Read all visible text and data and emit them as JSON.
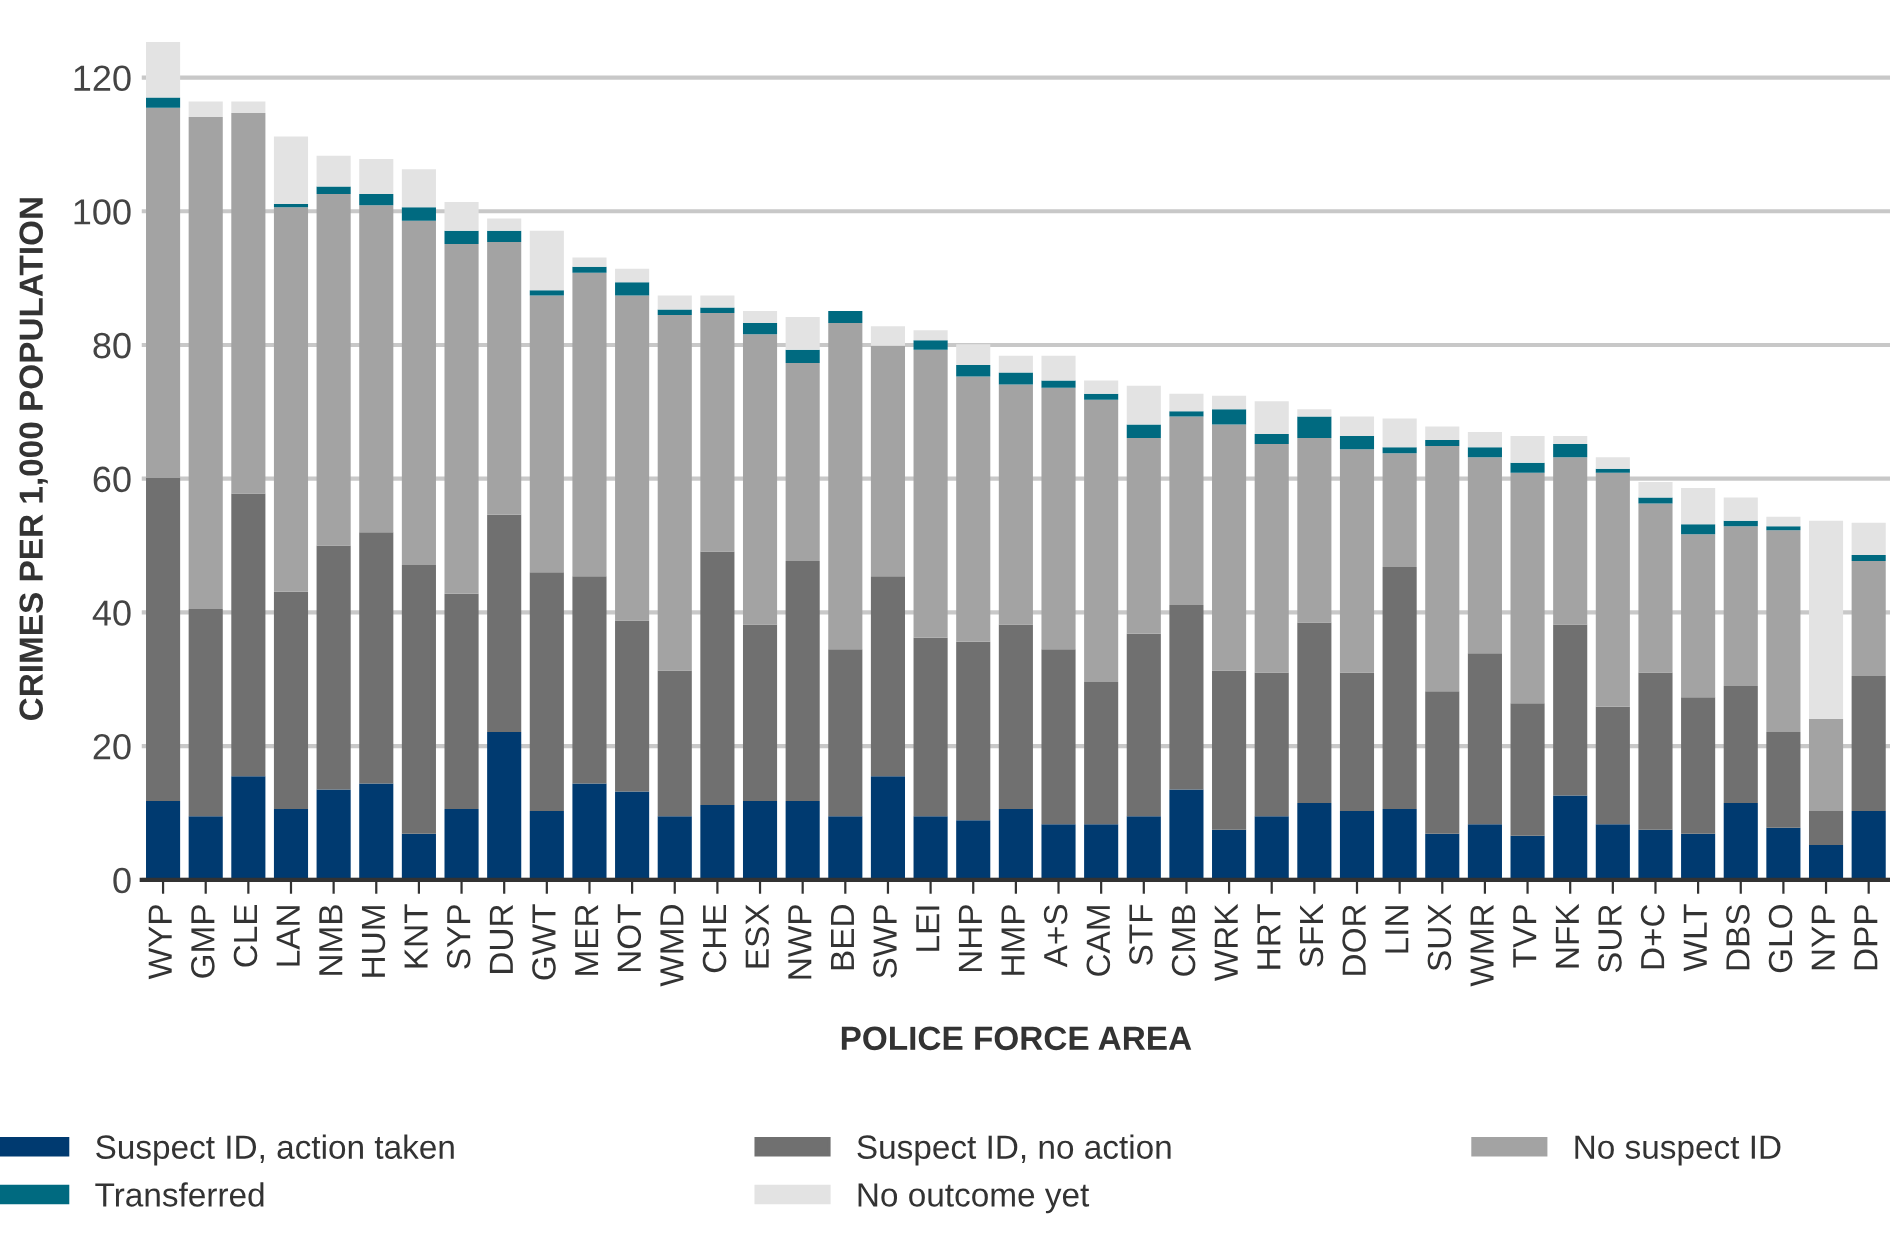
{
  "chart_data": {
    "type": "bar",
    "stacked": true,
    "xlabel": "POLICE FORCE AREA",
    "ylabel": "CRIMES PER 1,000 POPULATION",
    "categories": [
      "WYP",
      "GMP",
      "CLE",
      "LAN",
      "NMB",
      "HUM",
      "KNT",
      "SYP",
      "DUR",
      "GWT",
      "MER",
      "NOT",
      "WMD",
      "CHE",
      "ESX",
      "NWP",
      "BED",
      "SWP",
      "LEI",
      "NHP",
      "HMP",
      "A+S",
      "CAM",
      "STF",
      "CMB",
      "WRK",
      "HRT",
      "SFK",
      "DOR",
      "LIN",
      "SUX",
      "WMR",
      "TVP",
      "NFK",
      "SUR",
      "D+C",
      "WLT",
      "DBS",
      "GLO",
      "NYP",
      "DPP"
    ],
    "series": [
      {
        "name": "Suspect ID, action taken",
        "color": "#003a70",
        "values": [
          11.8,
          9.5,
          15.5,
          10.6,
          13.5,
          14.4,
          6.9,
          10.6,
          22.1,
          10.3,
          14.4,
          13.2,
          9.5,
          11.2,
          11.8,
          11.8,
          9.5,
          15.5,
          9.5,
          8.9,
          10.6,
          8.3,
          8.3,
          9.5,
          13.5,
          7.5,
          9.5,
          11.5,
          10.3,
          10.6,
          6.9,
          8.3,
          6.6,
          12.6,
          8.3,
          7.5,
          6.9,
          11.5,
          7.8,
          5.2,
          10.3
        ]
      },
      {
        "name": "Suspect ID, no action",
        "color": "#707070",
        "values": [
          48.3,
          31.0,
          42.3,
          32.5,
          36.5,
          37.6,
          40.2,
          32.2,
          32.5,
          35.7,
          31.0,
          25.6,
          21.8,
          37.9,
          26.4,
          35.9,
          25.0,
          29.9,
          26.7,
          26.7,
          27.6,
          26.2,
          21.3,
          27.3,
          27.6,
          23.8,
          21.5,
          27.0,
          20.7,
          36.2,
          21.3,
          25.6,
          19.8,
          25.6,
          17.6,
          23.5,
          20.4,
          17.5,
          14.3,
          5.1,
          20.2
        ]
      },
      {
        "name": "No suspect ID",
        "color": "#a3a3a3",
        "values": [
          55.4,
          73.6,
          56.9,
          57.5,
          52.6,
          48.9,
          51.5,
          52.3,
          40.8,
          41.4,
          45.4,
          48.6,
          53.2,
          35.7,
          43.4,
          29.6,
          48.8,
          34.5,
          43.1,
          39.7,
          35.9,
          39.1,
          42.2,
          29.3,
          28.2,
          36.8,
          34.2,
          27.6,
          33.4,
          17.0,
          36.7,
          29.3,
          34.5,
          25.0,
          35.0,
          25.3,
          24.4,
          23.9,
          30.2,
          13.8,
          17.2
        ]
      },
      {
        "name": "Transferred",
        "color": "#006a80",
        "values": [
          1.5,
          0,
          0,
          0.5,
          1.1,
          1.7,
          2.0,
          2.0,
          1.7,
          0.8,
          0.9,
          2.0,
          0.8,
          0.8,
          1.7,
          2.0,
          1.8,
          0,
          1.4,
          1.7,
          1.8,
          1.1,
          0.9,
          2.0,
          0.8,
          2.3,
          1.5,
          3.2,
          2.0,
          0.9,
          0.9,
          1.5,
          1.5,
          2.0,
          0.6,
          0.9,
          1.5,
          0.8,
          0.6,
          0,
          0.9
        ]
      },
      {
        "name": "No outcome yet",
        "color": "#e3e3e3",
        "values": [
          8.3,
          2.3,
          1.7,
          10.1,
          4.6,
          5.2,
          5.7,
          4.3,
          1.8,
          8.9,
          1.4,
          2.0,
          2.1,
          1.8,
          1.8,
          4.9,
          0,
          2.9,
          1.5,
          3.1,
          2.5,
          3.7,
          2.0,
          5.8,
          2.6,
          2.0,
          4.9,
          1.1,
          2.9,
          4.3,
          2.0,
          2.3,
          4.0,
          1.2,
          1.7,
          2.3,
          5.4,
          3.5,
          1.4,
          29.6,
          4.8
        ]
      }
    ],
    "ylim": [
      0,
      126
    ],
    "yticks": [
      0,
      20,
      40,
      60,
      80,
      100,
      120
    ],
    "grid": "y",
    "legend": "bottom"
  }
}
